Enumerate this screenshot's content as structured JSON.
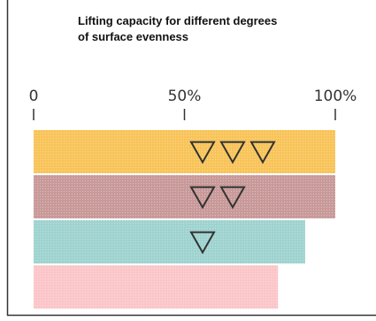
{
  "chart_data": {
    "type": "bar",
    "orientation": "horizontal",
    "title_lines": [
      "Lifting capacity for different degrees",
      "of surface evenness"
    ],
    "xlim": [
      0,
      100
    ],
    "x_ticks": [
      {
        "value": 0,
        "label": "0"
      },
      {
        "value": 50,
        "label": "50%"
      },
      {
        "value": 100,
        "label": "100%"
      }
    ],
    "grid": false,
    "legend": "none",
    "bars": [
      {
        "value": 100,
        "color": "#f8c45a",
        "triangles": 3
      },
      {
        "value": 100,
        "color": "#c99a9a",
        "triangles": 2
      },
      {
        "value": 90,
        "color": "#9fd3d0",
        "triangles": 1
      },
      {
        "value": 81,
        "color": "#fbc6c9",
        "triangles": 0
      }
    ],
    "marker": "down-triangle"
  }
}
